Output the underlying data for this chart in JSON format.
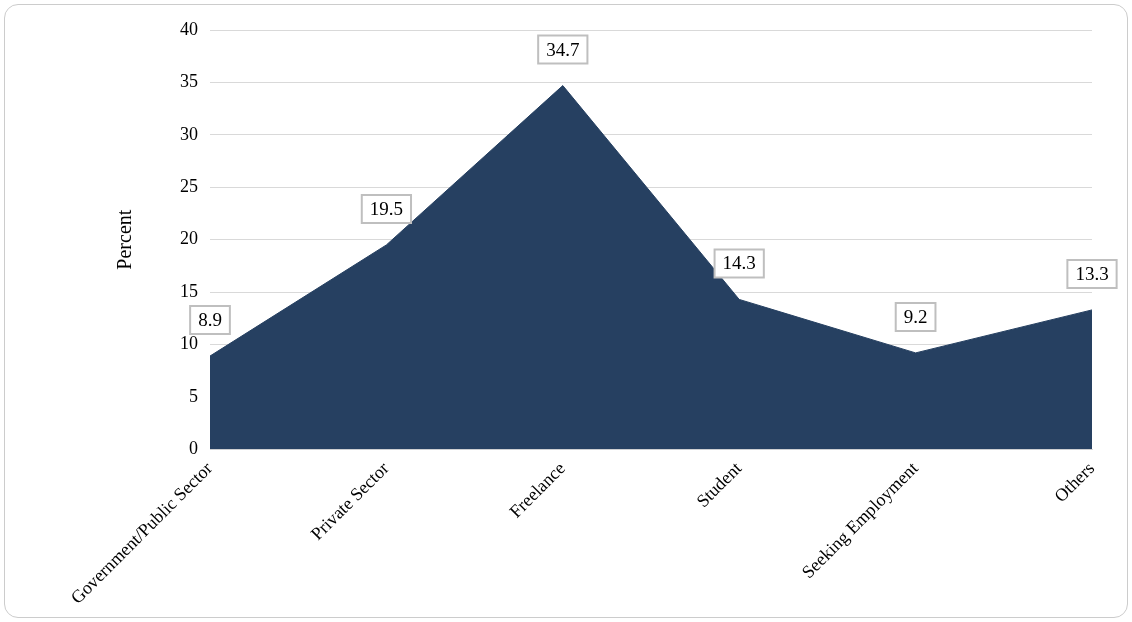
{
  "chart_data": {
    "type": "area",
    "ylabel": "Percent",
    "categories": [
      "Government/Public Sector",
      "Private Sector",
      "Freelance",
      "Student",
      "Seeking Employment",
      "Others"
    ],
    "values": [
      8.9,
      19.5,
      34.7,
      14.3,
      9.2,
      13.3
    ],
    "color": "#264061",
    "ylim": [
      0,
      40
    ],
    "yticks": [
      0,
      5,
      10,
      15,
      20,
      25,
      30,
      35,
      40
    ],
    "grid": "y",
    "data_labels": true,
    "legend": false
  }
}
